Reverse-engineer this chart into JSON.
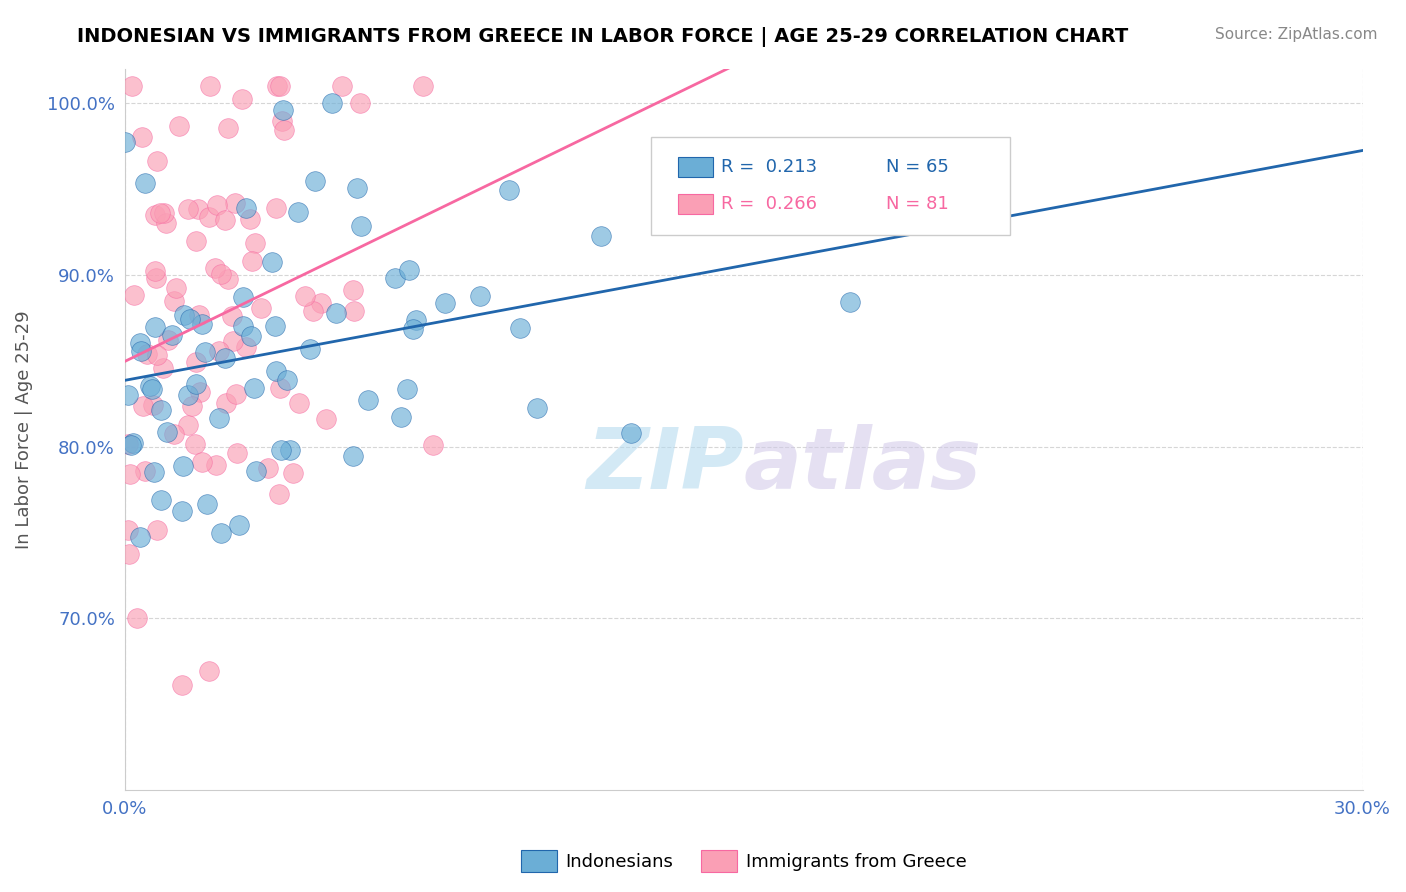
{
  "title": "INDONESIAN VS IMMIGRANTS FROM GREECE IN LABOR FORCE | AGE 25-29 CORRELATION CHART",
  "source": "Source: ZipAtlas.com",
  "xlabel": "",
  "ylabel": "In Labor Force | Age 25-29",
  "xlim": [
    0.0,
    0.3
  ],
  "ylim": [
    0.6,
    1.02
  ],
  "xticks": [
    0.0,
    0.3
  ],
  "xticklabels": [
    "0.0%",
    "30.0%"
  ],
  "yticks": [
    0.7,
    0.8,
    0.9,
    1.0
  ],
  "yticklabels": [
    "70.0%",
    "80.0%",
    "90.0%",
    "100.0%"
  ],
  "legend_r_blue": "R =  0.213",
  "legend_n_blue": "N = 65",
  "legend_r_pink": "R =  0.266",
  "legend_n_pink": "N = 81",
  "blue_color": "#6baed6",
  "pink_color": "#fa9fb5",
  "blue_line_color": "#2166ac",
  "pink_line_color": "#f768a1",
  "watermark_zip": "ZIP",
  "watermark_atlas": "atlas"
}
